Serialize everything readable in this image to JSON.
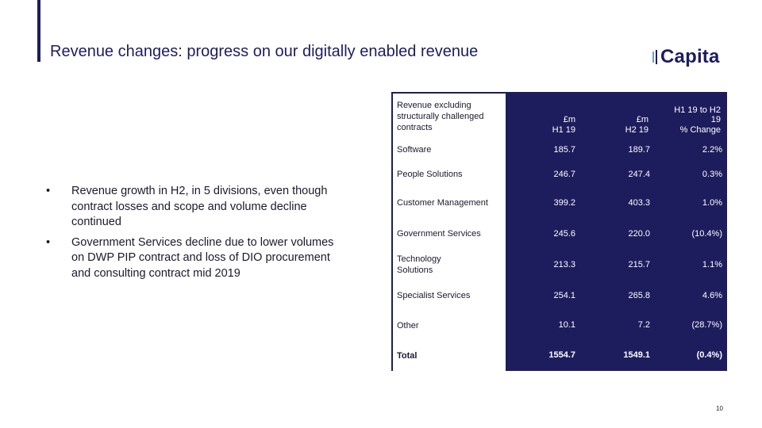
{
  "header": {
    "title": "Revenue changes: progress on our digitally enabled revenue",
    "logo_text": "Capita"
  },
  "bullets": [
    "Revenue growth in H2, in 5 divisions, even though contract losses and scope and volume decline continued",
    "Government Services decline due to lower volumes on DWP PIP contract and loss of DIO procurement and consulting contract mid 2019"
  ],
  "bullet_glyph": "•",
  "table": {
    "label_header": "Revenue excluding structurally challenged contracts",
    "col1": {
      "line1": "£m",
      "line2": "H1 19"
    },
    "col2": {
      "line1": "£m",
      "line2": "H2 19"
    },
    "col3": {
      "line1": "H1 19 to H2",
      "line2": "19",
      "line3": "% Change"
    },
    "rows": [
      {
        "label": "Software",
        "h1": "185.7",
        "h2": "189.7",
        "change": "2.2%"
      },
      {
        "label": "People Solutions",
        "h1": "246.7",
        "h2": "247.4",
        "change": "0.3%"
      },
      {
        "label": "Customer Management",
        "h1": "399.2",
        "h2": "403.3",
        "change": "1.0%"
      },
      {
        "label": "Government Services",
        "h1": "245.6",
        "h2": "220.0",
        "change": "(10.4%)"
      },
      {
        "label": "Technology Solutions",
        "h1": "213.3",
        "h2": "215.7",
        "change": "1.1%"
      },
      {
        "label": "Specialist Services",
        "h1": "254.1",
        "h2": "265.8",
        "change": "4.6%"
      },
      {
        "label": "Other",
        "h1": "10.1",
        "h2": "7.2",
        "change": "(28.7%)"
      }
    ],
    "total": {
      "label": "Total",
      "h1": "1554.7",
      "h2": "1549.1",
      "change": "(0.4%)"
    }
  },
  "page_number": "10",
  "colors": {
    "navy": "#1d1d5e",
    "logo_accent": "#6f9fd4"
  }
}
